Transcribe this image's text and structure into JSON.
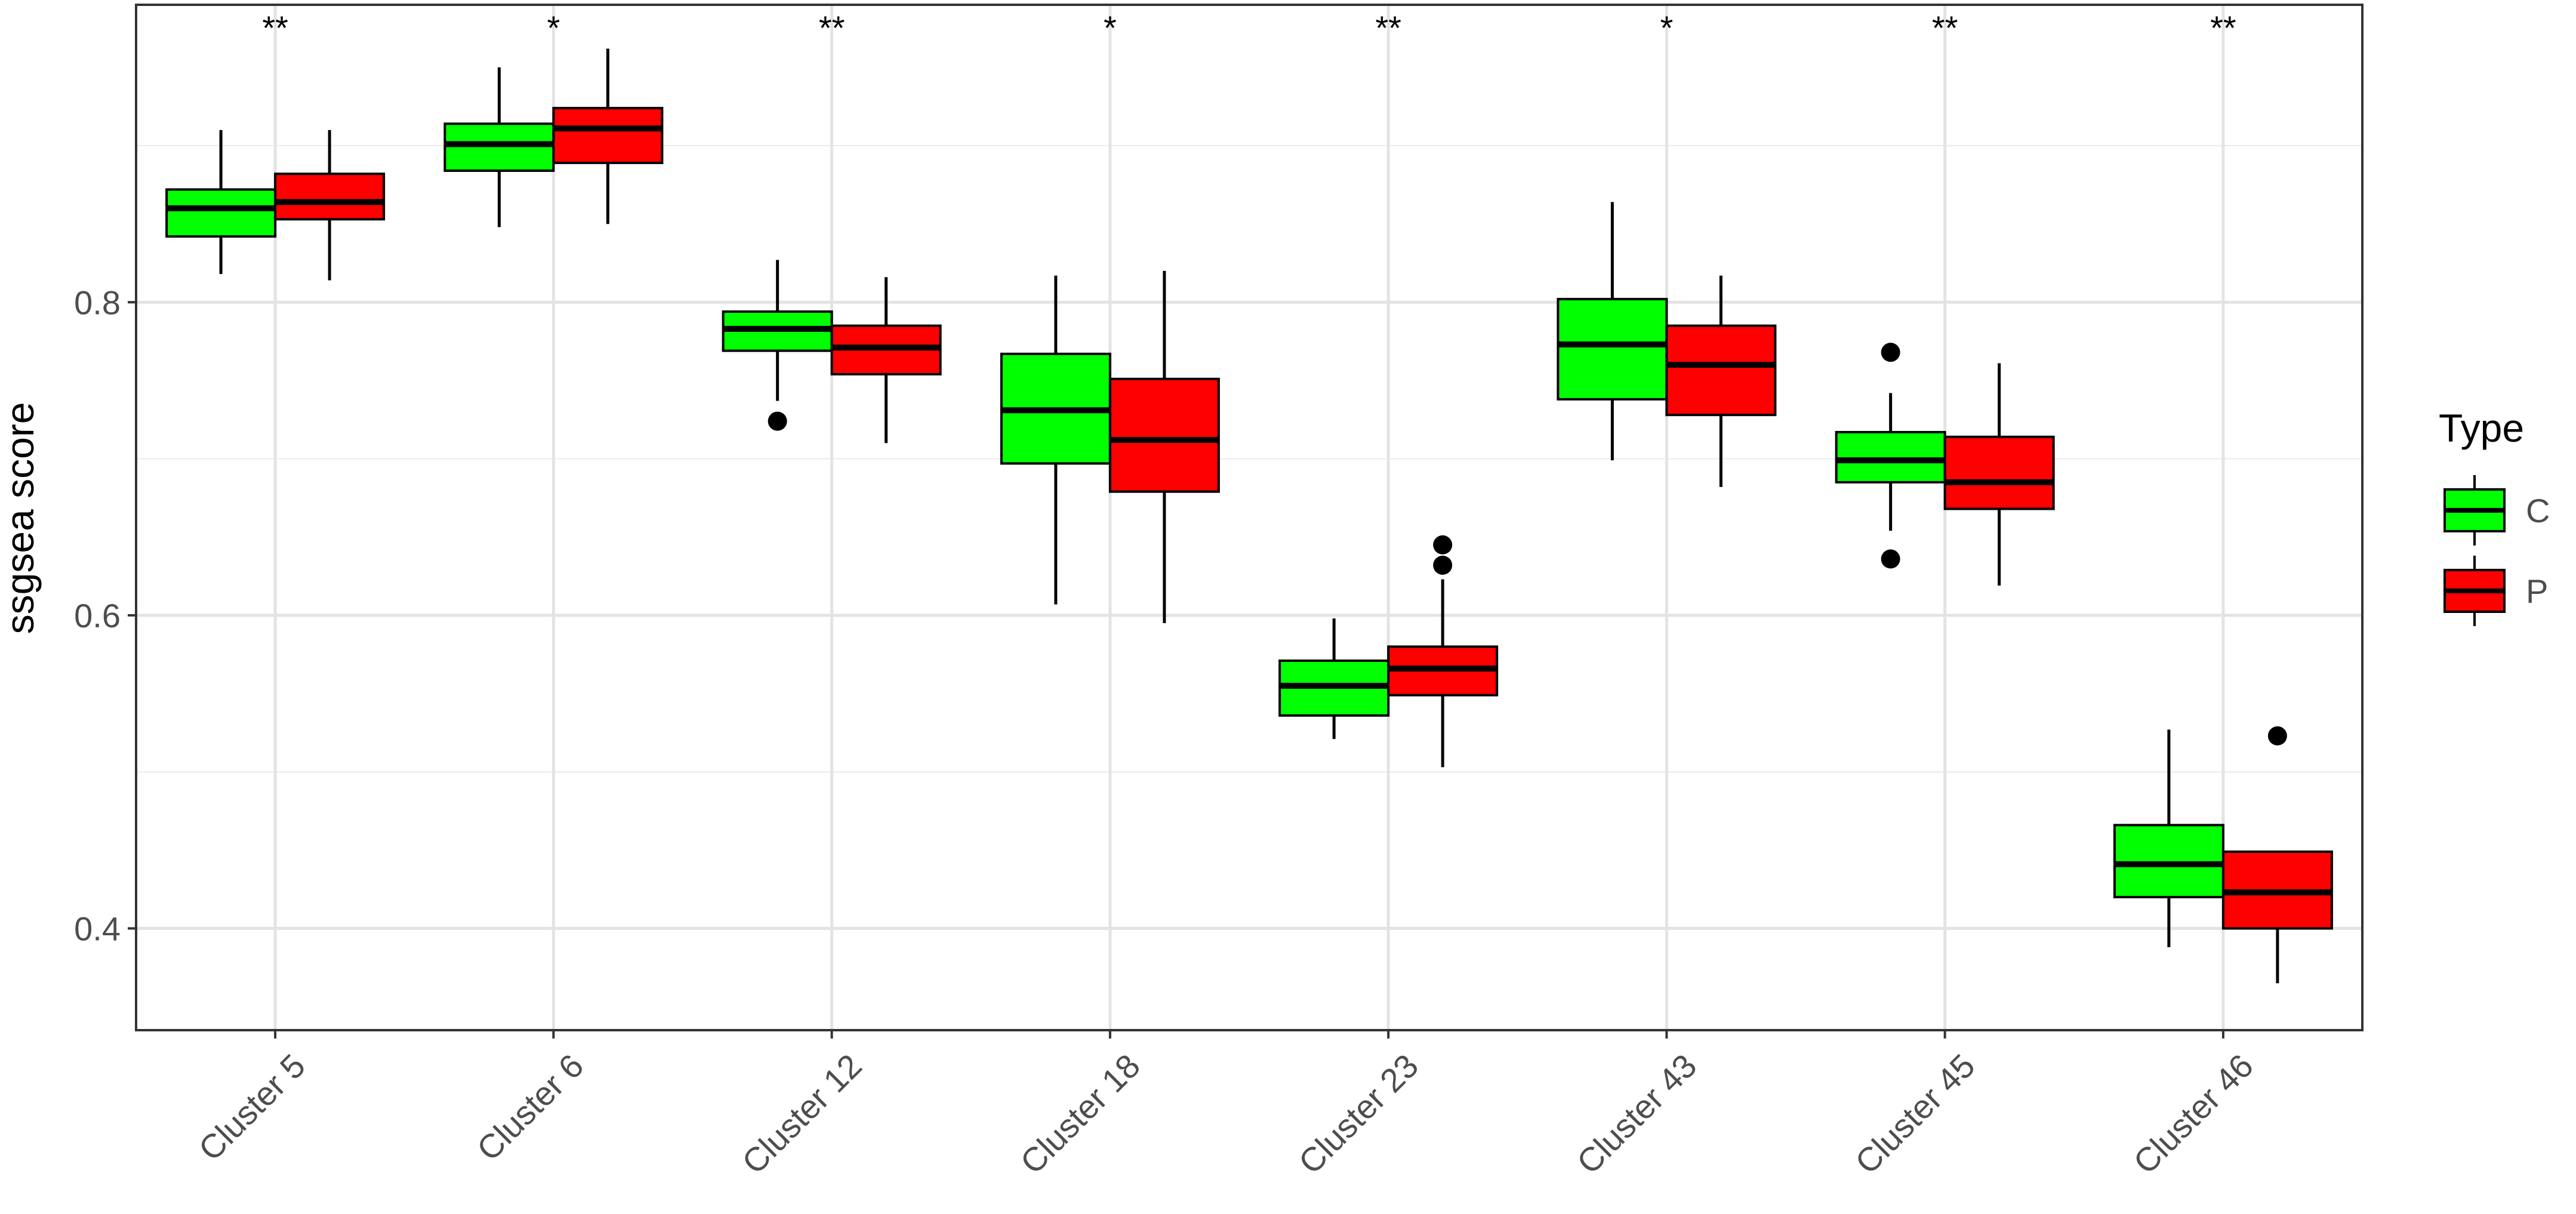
{
  "chart_data": {
    "type": "box",
    "title": "",
    "xlabel": "",
    "ylabel": "ssgsea score",
    "ylim": [
      0.335,
      0.99
    ],
    "yticks": [
      0.4,
      0.6,
      0.8
    ],
    "ytick_labels": [
      "0.4",
      "0.6",
      "0.8"
    ],
    "grid": true,
    "legend": {
      "title": "Type",
      "position": "right",
      "entries": [
        {
          "label": "C",
          "color": "#00FF00"
        },
        {
          "label": "P",
          "color": "#FF0000"
        }
      ]
    },
    "categories": [
      "Cluster 5",
      "Cluster 6",
      "Cluster 12",
      "Cluster 18",
      "Cluster 23",
      "Cluster 43",
      "Cluster 45",
      "Cluster 46"
    ],
    "significance": [
      "**",
      "*",
      "**",
      "*",
      "**",
      "*",
      "**",
      "**"
    ],
    "series": [
      {
        "name": "C",
        "color": "#00FF00",
        "boxes": [
          {
            "min": 0.818,
            "q1": 0.842,
            "median": 0.86,
            "q3": 0.872,
            "max": 0.91,
            "outliers": []
          },
          {
            "min": 0.848,
            "q1": 0.884,
            "median": 0.901,
            "q3": 0.914,
            "max": 0.95,
            "outliers": []
          },
          {
            "min": 0.737,
            "q1": 0.769,
            "median": 0.783,
            "q3": 0.794,
            "max": 0.827,
            "outliers": [
              0.724
            ]
          },
          {
            "min": 0.607,
            "q1": 0.697,
            "median": 0.731,
            "q3": 0.767,
            "max": 0.817,
            "outliers": []
          },
          {
            "min": 0.521,
            "q1": 0.536,
            "median": 0.555,
            "q3": 0.571,
            "max": 0.598,
            "outliers": []
          },
          {
            "min": 0.699,
            "q1": 0.738,
            "median": 0.773,
            "q3": 0.802,
            "max": 0.864,
            "outliers": []
          },
          {
            "min": 0.654,
            "q1": 0.685,
            "median": 0.699,
            "q3": 0.717,
            "max": 0.742,
            "outliers": [
              0.636,
              0.768
            ]
          },
          {
            "min": 0.388,
            "q1": 0.42,
            "median": 0.441,
            "q3": 0.466,
            "max": 0.527,
            "outliers": []
          }
        ]
      },
      {
        "name": "P",
        "color": "#FF0000",
        "boxes": [
          {
            "min": 0.814,
            "q1": 0.853,
            "median": 0.864,
            "q3": 0.882,
            "max": 0.91,
            "outliers": []
          },
          {
            "min": 0.85,
            "q1": 0.889,
            "median": 0.911,
            "q3": 0.924,
            "max": 0.962,
            "outliers": []
          },
          {
            "min": 0.71,
            "q1": 0.754,
            "median": 0.771,
            "q3": 0.785,
            "max": 0.816,
            "outliers": []
          },
          {
            "min": 0.595,
            "q1": 0.679,
            "median": 0.712,
            "q3": 0.751,
            "max": 0.82,
            "outliers": []
          },
          {
            "min": 0.503,
            "q1": 0.549,
            "median": 0.566,
            "q3": 0.58,
            "max": 0.623,
            "outliers": [
              0.632,
              0.645
            ]
          },
          {
            "min": 0.682,
            "q1": 0.728,
            "median": 0.76,
            "q3": 0.785,
            "max": 0.817,
            "outliers": []
          },
          {
            "min": 0.619,
            "q1": 0.668,
            "median": 0.685,
            "q3": 0.714,
            "max": 0.761,
            "outliers": []
          },
          {
            "min": 0.365,
            "q1": 0.4,
            "median": 0.423,
            "q3": 0.449,
            "max": 0.449,
            "outliers": [
              0.523
            ]
          }
        ]
      }
    ]
  }
}
